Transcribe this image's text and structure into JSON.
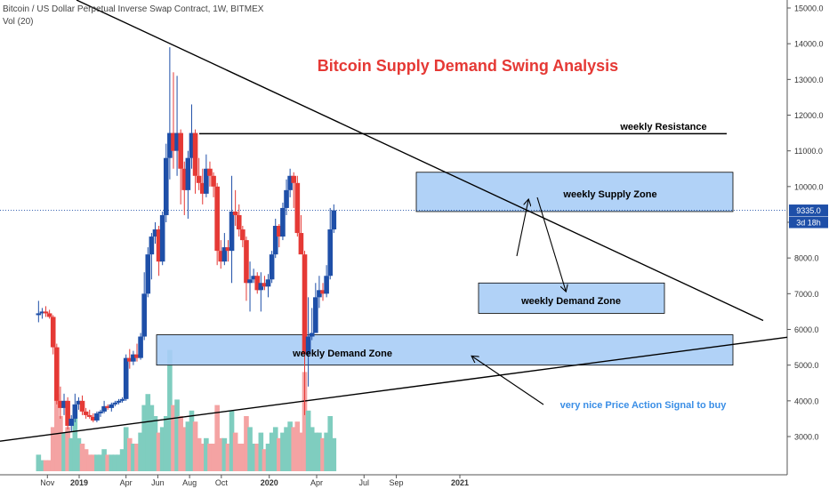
{
  "header": {
    "symbol": "Bitcoin / US Dollar Perpetual Inverse Swap Contract, 1W, BITMEX",
    "volume_label": "Vol (20)"
  },
  "title": "Bitcoin Supply Demand Swing Analysis",
  "colors": {
    "up": "#1e4fa8",
    "down": "#e53935",
    "vol_up": "#7fcdbf",
    "vol_down": "#f4a3a3",
    "zone_fill": "#a9cdf6",
    "zone_stroke": "#000000",
    "title": "#e53935",
    "signal_text": "#3a8ee6",
    "price_badge": "#1e4fa8"
  },
  "annotations": {
    "resistance": "weekly Resistance",
    "supply_zone": "weekly Supply Zone",
    "demand_zone_upper": "weekly Demand Zone",
    "demand_zone_lower": "weekly Demand Zone",
    "signal": "very nice Price Action Signal to buy"
  },
  "price_badge": {
    "price": "9335.0",
    "countdown": "3d 18h"
  },
  "chart_data": {
    "type": "candlestick",
    "title": "Bitcoin Supply Demand Swing Analysis",
    "y_ticks": [
      "15000.0",
      "14000.0",
      "13000.0",
      "12000.0",
      "11000.0",
      "10000.0",
      "9000.0",
      "8000.0",
      "7000.0",
      "6000.0",
      "5000.0",
      "4000.0",
      "3000.0"
    ],
    "y_tick_values": [
      15000,
      14000,
      13000,
      12000,
      11000,
      10000,
      9000,
      8000,
      7000,
      6000,
      5000,
      4000,
      3000
    ],
    "x_ticks": [
      {
        "label": "Nov",
        "date": "2018-11-01"
      },
      {
        "label": "2019",
        "date": "2019-01-01"
      },
      {
        "label": "Apr",
        "date": "2019-04-01"
      },
      {
        "label": "Jun",
        "date": "2019-06-01"
      },
      {
        "label": "Aug",
        "date": "2019-08-01"
      },
      {
        "label": "Oct",
        "date": "2019-10-01"
      },
      {
        "label": "2020",
        "date": "2020-01-01"
      },
      {
        "label": "Apr",
        "date": "2020-04-01"
      },
      {
        "label": "Jul",
        "date": "2020-07-01"
      },
      {
        "label": "Sep",
        "date": "2020-09-01"
      },
      {
        "label": "2021",
        "date": "2021-01-01"
      }
    ],
    "candles": [
      {
        "date": "2018-10-15",
        "o": 6400,
        "h": 6800,
        "l": 6200,
        "c": 6450,
        "v": 3
      },
      {
        "date": "2018-10-22",
        "o": 6450,
        "h": 6600,
        "l": 6300,
        "c": 6500,
        "v": 2
      },
      {
        "date": "2018-10-29",
        "o": 6500,
        "h": 6650,
        "l": 6350,
        "c": 6450,
        "v": 2
      },
      {
        "date": "2018-11-05",
        "o": 6450,
        "h": 6550,
        "l": 6300,
        "c": 6350,
        "v": 2
      },
      {
        "date": "2018-11-12",
        "o": 6350,
        "h": 6400,
        "l": 5300,
        "c": 5500,
        "v": 8
      },
      {
        "date": "2018-11-19",
        "o": 5500,
        "h": 5600,
        "l": 3900,
        "c": 4000,
        "v": 14
      },
      {
        "date": "2018-11-26",
        "o": 4000,
        "h": 4400,
        "l": 3500,
        "c": 3800,
        "v": 10
      },
      {
        "date": "2018-12-03",
        "o": 3800,
        "h": 4200,
        "l": 3600,
        "c": 4000,
        "v": 7
      },
      {
        "date": "2018-12-10",
        "o": 4000,
        "h": 4100,
        "l": 3200,
        "c": 3300,
        "v": 8
      },
      {
        "date": "2018-12-17",
        "o": 3300,
        "h": 3600,
        "l": 3150,
        "c": 3500,
        "v": 6
      },
      {
        "date": "2018-12-24",
        "o": 3500,
        "h": 4200,
        "l": 3400,
        "c": 3900,
        "v": 11
      },
      {
        "date": "2018-12-31",
        "o": 3900,
        "h": 4100,
        "l": 3750,
        "c": 4000,
        "v": 6
      },
      {
        "date": "2019-01-07",
        "o": 4000,
        "h": 4150,
        "l": 3600,
        "c": 3700,
        "v": 5
      },
      {
        "date": "2019-01-14",
        "o": 3700,
        "h": 3800,
        "l": 3500,
        "c": 3600,
        "v": 4
      },
      {
        "date": "2019-01-21",
        "o": 3600,
        "h": 3750,
        "l": 3500,
        "c": 3550,
        "v": 3
      },
      {
        "date": "2019-01-28",
        "o": 3550,
        "h": 3650,
        "l": 3400,
        "c": 3450,
        "v": 3
      },
      {
        "date": "2019-02-04",
        "o": 3450,
        "h": 3700,
        "l": 3400,
        "c": 3650,
        "v": 3
      },
      {
        "date": "2019-02-11",
        "o": 3650,
        "h": 3750,
        "l": 3550,
        "c": 3700,
        "v": 3
      },
      {
        "date": "2019-02-18",
        "o": 3700,
        "h": 4000,
        "l": 3650,
        "c": 3850,
        "v": 4
      },
      {
        "date": "2019-02-25",
        "o": 3850,
        "h": 3900,
        "l": 3750,
        "c": 3800,
        "v": 3
      },
      {
        "date": "2019-03-04",
        "o": 3800,
        "h": 3950,
        "l": 3700,
        "c": 3900,
        "v": 3
      },
      {
        "date": "2019-03-11",
        "o": 3900,
        "h": 4000,
        "l": 3850,
        "c": 3950,
        "v": 3
      },
      {
        "date": "2019-03-18",
        "o": 3950,
        "h": 4050,
        "l": 3900,
        "c": 4000,
        "v": 3
      },
      {
        "date": "2019-03-25",
        "o": 4000,
        "h": 4100,
        "l": 3950,
        "c": 4050,
        "v": 4
      },
      {
        "date": "2019-04-01",
        "o": 4050,
        "h": 5300,
        "l": 4000,
        "c": 5200,
        "v": 8
      },
      {
        "date": "2019-04-08",
        "o": 5200,
        "h": 5450,
        "l": 4900,
        "c": 5100,
        "v": 6
      },
      {
        "date": "2019-04-15",
        "o": 5100,
        "h": 5400,
        "l": 5000,
        "c": 5300,
        "v": 5
      },
      {
        "date": "2019-04-22",
        "o": 5300,
        "h": 5600,
        "l": 5100,
        "c": 5200,
        "v": 5
      },
      {
        "date": "2019-04-29",
        "o": 5200,
        "h": 5900,
        "l": 5150,
        "c": 5800,
        "v": 7
      },
      {
        "date": "2019-05-06",
        "o": 5800,
        "h": 7600,
        "l": 5700,
        "c": 7000,
        "v": 12
      },
      {
        "date": "2019-05-13",
        "o": 7000,
        "h": 8300,
        "l": 6900,
        "c": 8100,
        "v": 14
      },
      {
        "date": "2019-05-20",
        "o": 8100,
        "h": 8700,
        "l": 7400,
        "c": 8600,
        "v": 12
      },
      {
        "date": "2019-05-27",
        "o": 8600,
        "h": 9000,
        "l": 8400,
        "c": 8800,
        "v": 10
      },
      {
        "date": "2019-06-03",
        "o": 8800,
        "h": 8900,
        "l": 7500,
        "c": 7900,
        "v": 7
      },
      {
        "date": "2019-06-10",
        "o": 7900,
        "h": 9300,
        "l": 7800,
        "c": 9200,
        "v": 8
      },
      {
        "date": "2019-06-17",
        "o": 9200,
        "h": 11200,
        "l": 9000,
        "c": 10800,
        "v": 10
      },
      {
        "date": "2019-06-24",
        "o": 10800,
        "h": 13900,
        "l": 10200,
        "c": 11500,
        "v": 22
      },
      {
        "date": "2019-07-01",
        "o": 11500,
        "h": 13200,
        "l": 10500,
        "c": 11000,
        "v": 12
      },
      {
        "date": "2019-07-08",
        "o": 11000,
        "h": 13100,
        "l": 10300,
        "c": 11500,
        "v": 13
      },
      {
        "date": "2019-07-15",
        "o": 11500,
        "h": 11600,
        "l": 9500,
        "c": 10500,
        "v": 10
      },
      {
        "date": "2019-07-22",
        "o": 10500,
        "h": 10700,
        "l": 9200,
        "c": 9900,
        "v": 8
      },
      {
        "date": "2019-07-29",
        "o": 9900,
        "h": 11000,
        "l": 9100,
        "c": 10800,
        "v": 9
      },
      {
        "date": "2019-08-05",
        "o": 10800,
        "h": 12300,
        "l": 10500,
        "c": 11500,
        "v": 11
      },
      {
        "date": "2019-08-12",
        "o": 11500,
        "h": 11600,
        "l": 9800,
        "c": 10300,
        "v": 9
      },
      {
        "date": "2019-08-19",
        "o": 10300,
        "h": 10800,
        "l": 9900,
        "c": 10100,
        "v": 6
      },
      {
        "date": "2019-08-26",
        "o": 10100,
        "h": 10500,
        "l": 9500,
        "c": 9800,
        "v": 5
      },
      {
        "date": "2019-09-02",
        "o": 9800,
        "h": 10900,
        "l": 9700,
        "c": 10500,
        "v": 6
      },
      {
        "date": "2019-09-09",
        "o": 10500,
        "h": 10700,
        "l": 10000,
        "c": 10300,
        "v": 5
      },
      {
        "date": "2019-09-16",
        "o": 10300,
        "h": 10400,
        "l": 9700,
        "c": 10000,
        "v": 5
      },
      {
        "date": "2019-09-23",
        "o": 10000,
        "h": 10100,
        "l": 7800,
        "c": 8200,
        "v": 12
      },
      {
        "date": "2019-09-30",
        "o": 8200,
        "h": 8500,
        "l": 7700,
        "c": 7900,
        "v": 6
      },
      {
        "date": "2019-10-07",
        "o": 7900,
        "h": 8700,
        "l": 7800,
        "c": 8300,
        "v": 6
      },
      {
        "date": "2019-10-14",
        "o": 8300,
        "h": 8500,
        "l": 7900,
        "c": 8200,
        "v": 5
      },
      {
        "date": "2019-10-21",
        "o": 8200,
        "h": 10300,
        "l": 7300,
        "c": 9300,
        "v": 11
      },
      {
        "date": "2019-10-28",
        "o": 9300,
        "h": 9900,
        "l": 8900,
        "c": 9200,
        "v": 7
      },
      {
        "date": "2019-11-04",
        "o": 9200,
        "h": 9500,
        "l": 8600,
        "c": 8800,
        "v": 5
      },
      {
        "date": "2019-11-11",
        "o": 8800,
        "h": 8900,
        "l": 8300,
        "c": 8500,
        "v": 5
      },
      {
        "date": "2019-11-18",
        "o": 8500,
        "h": 8600,
        "l": 6800,
        "c": 7300,
        "v": 10
      },
      {
        "date": "2019-11-25",
        "o": 7300,
        "h": 7900,
        "l": 6500,
        "c": 7400,
        "v": 8
      },
      {
        "date": "2019-12-02",
        "o": 7400,
        "h": 7700,
        "l": 7300,
        "c": 7500,
        "v": 5
      },
      {
        "date": "2019-12-09",
        "o": 7500,
        "h": 7600,
        "l": 7000,
        "c": 7100,
        "v": 5
      },
      {
        "date": "2019-12-16",
        "o": 7100,
        "h": 7600,
        "l": 6500,
        "c": 7300,
        "v": 7
      },
      {
        "date": "2019-12-23",
        "o": 7300,
        "h": 7500,
        "l": 7100,
        "c": 7200,
        "v": 4
      },
      {
        "date": "2019-12-30",
        "o": 7200,
        "h": 7550,
        "l": 6900,
        "c": 7400,
        "v": 5
      },
      {
        "date": "2020-01-06",
        "o": 7400,
        "h": 8200,
        "l": 7300,
        "c": 8100,
        "v": 7
      },
      {
        "date": "2020-01-13",
        "o": 8100,
        "h": 9100,
        "l": 8000,
        "c": 8900,
        "v": 8
      },
      {
        "date": "2020-01-20",
        "o": 8900,
        "h": 8950,
        "l": 8300,
        "c": 8600,
        "v": 6
      },
      {
        "date": "2020-01-27",
        "o": 8600,
        "h": 9550,
        "l": 8500,
        "c": 9400,
        "v": 7
      },
      {
        "date": "2020-02-03",
        "o": 9400,
        "h": 10200,
        "l": 9200,
        "c": 9900,
        "v": 8
      },
      {
        "date": "2020-02-10",
        "o": 9900,
        "h": 10500,
        "l": 9700,
        "c": 10300,
        "v": 9
      },
      {
        "date": "2020-02-17",
        "o": 10300,
        "h": 10400,
        "l": 9400,
        "c": 10100,
        "v": 8
      },
      {
        "date": "2020-02-24",
        "o": 10100,
        "h": 10300,
        "l": 8600,
        "c": 8700,
        "v": 9
      },
      {
        "date": "2020-03-02",
        "o": 8700,
        "h": 9200,
        "l": 8200,
        "c": 8100,
        "v": 7
      },
      {
        "date": "2020-03-09",
        "o": 8100,
        "h": 8200,
        "l": 3600,
        "c": 5300,
        "v": 18
      },
      {
        "date": "2020-03-16",
        "o": 5300,
        "h": 6900,
        "l": 4400,
        "c": 5800,
        "v": 11
      },
      {
        "date": "2020-03-23",
        "o": 5800,
        "h": 6600,
        "l": 5700,
        "c": 5900,
        "v": 8
      },
      {
        "date": "2020-03-30",
        "o": 5900,
        "h": 7300,
        "l": 5900,
        "c": 6900,
        "v": 7
      },
      {
        "date": "2020-04-06",
        "o": 6900,
        "h": 7500,
        "l": 6600,
        "c": 7100,
        "v": 7
      },
      {
        "date": "2020-04-13",
        "o": 7100,
        "h": 7300,
        "l": 6800,
        "c": 7000,
        "v": 6
      },
      {
        "date": "2020-04-20",
        "o": 7000,
        "h": 7800,
        "l": 6900,
        "c": 7500,
        "v": 7
      },
      {
        "date": "2020-04-27",
        "o": 7500,
        "h": 9400,
        "l": 7400,
        "c": 8800,
        "v": 10
      },
      {
        "date": "2020-05-04",
        "o": 8800,
        "h": 9500,
        "l": 8700,
        "c": 9335,
        "v": 6
      }
    ]
  }
}
